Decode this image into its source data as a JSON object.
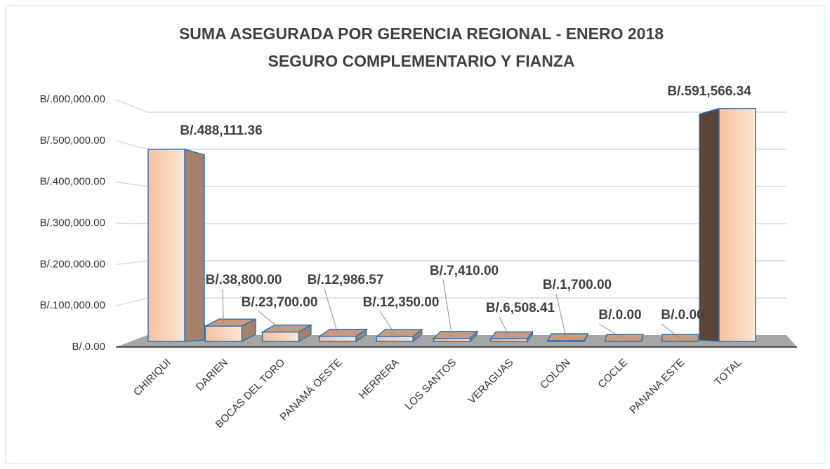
{
  "chart_data": {
    "type": "bar3d",
    "title": "SUMA ASEGURADA POR GERENCIA REGIONAL - ENERO 2018",
    "subtitle": "SEGURO COMPLEMENTARIO Y FIANZA",
    "categories": [
      "CHIRIQUI",
      "DARIEN",
      "BOCAS DEL TORO",
      "PANAMÁ OESTE",
      "HERRERA",
      "LOS SANTOS",
      "VERAGUAS",
      "COLÓN",
      "COCLE",
      "PANANA ESTE",
      "TOTAL"
    ],
    "values": [
      488111.36,
      38800,
      23700,
      12986.57,
      12350,
      7410,
      6508.41,
      1700,
      0,
      0,
      591566.34
    ],
    "value_labels": [
      "B/.488,111.36",
      "B/.38,800.00",
      "B/.23,700.00",
      "B/.12,986.57",
      "B/.12,350.00",
      "B/.7,410.00",
      "B/.6,508.41",
      "B/.1,700.00",
      "B/.0.00",
      "B/.0.00",
      "B/.591,566.34"
    ],
    "color": "#f8c6a6",
    "ylim": [
      0,
      600000
    ],
    "yticks": [
      {
        "value": 0,
        "label": "B/.0.00"
      },
      {
        "value": 100000,
        "label": "B/.100,000.00"
      },
      {
        "value": 200000,
        "label": "B/.200,000.00"
      },
      {
        "value": 300000,
        "label": "B/.300,000.00"
      },
      {
        "value": 400000,
        "label": "B/.400,000.00"
      },
      {
        "value": 500000,
        "label": "B/.500,000.00"
      },
      {
        "value": 600000,
        "label": "B/.600,000.00"
      }
    ],
    "grid": true
  }
}
